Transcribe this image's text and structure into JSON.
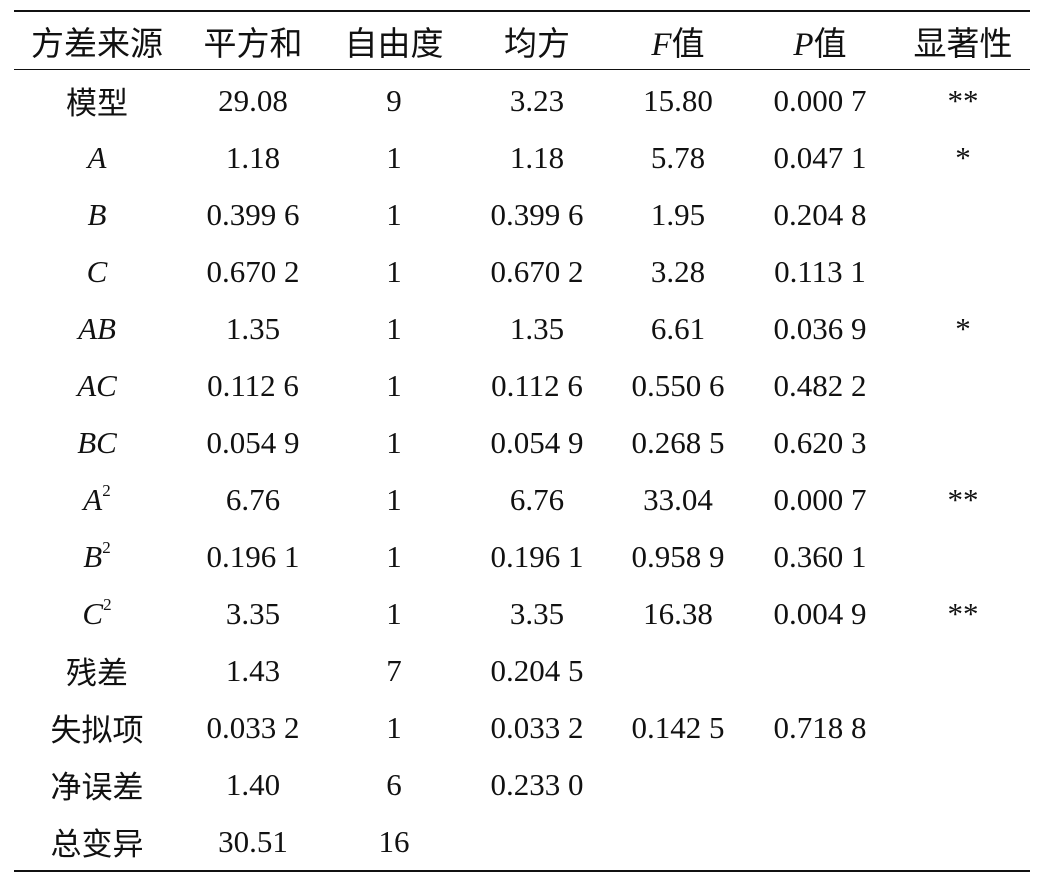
{
  "table": {
    "headers": [
      {
        "prefix": "",
        "text": "方差来源"
      },
      {
        "prefix": "",
        "text": "平方和"
      },
      {
        "prefix": "",
        "text": "自由度"
      },
      {
        "prefix": "",
        "text": "均方"
      },
      {
        "prefix": "F",
        "text": "值"
      },
      {
        "prefix": "P",
        "text": "值"
      },
      {
        "prefix": "",
        "text": "显著性"
      }
    ],
    "rows": [
      {
        "source": "模型",
        "source_italic": false,
        "source_sup": "",
        "ss": "29.08",
        "df": "9",
        "ms": "3.23",
        "f": "15.80",
        "p": "0.000 7",
        "sig": "**"
      },
      {
        "source": "A",
        "source_italic": true,
        "source_sup": "",
        "ss": "1.18",
        "df": "1",
        "ms": "1.18",
        "f": "5.78",
        "p": "0.047 1",
        "sig": "*"
      },
      {
        "source": "B",
        "source_italic": true,
        "source_sup": "",
        "ss": "0.399 6",
        "df": "1",
        "ms": "0.399 6",
        "f": "1.95",
        "p": "0.204 8",
        "sig": ""
      },
      {
        "source": "C",
        "source_italic": true,
        "source_sup": "",
        "ss": "0.670 2",
        "df": "1",
        "ms": "0.670 2",
        "f": "3.28",
        "p": "0.113 1",
        "sig": ""
      },
      {
        "source": "AB",
        "source_italic": true,
        "source_sup": "",
        "ss": "1.35",
        "df": "1",
        "ms": "1.35",
        "f": "6.61",
        "p": "0.036 9",
        "sig": "*"
      },
      {
        "source": "AC",
        "source_italic": true,
        "source_sup": "",
        "ss": "0.112 6",
        "df": "1",
        "ms": "0.112 6",
        "f": "0.550 6",
        "p": "0.482 2",
        "sig": ""
      },
      {
        "source": "BC",
        "source_italic": true,
        "source_sup": "",
        "ss": "0.054 9",
        "df": "1",
        "ms": "0.054 9",
        "f": "0.268 5",
        "p": "0.620 3",
        "sig": ""
      },
      {
        "source": "A",
        "source_italic": true,
        "source_sup": "2",
        "ss": "6.76",
        "df": "1",
        "ms": "6.76",
        "f": "33.04",
        "p": "0.000 7",
        "sig": "**"
      },
      {
        "source": "B",
        "source_italic": true,
        "source_sup": "2",
        "ss": "0.196 1",
        "df": "1",
        "ms": "0.196 1",
        "f": "0.958 9",
        "p": "0.360 1",
        "sig": ""
      },
      {
        "source": "C",
        "source_italic": true,
        "source_sup": "2",
        "ss": "3.35",
        "df": "1",
        "ms": "3.35",
        "f": "16.38",
        "p": "0.004 9",
        "sig": "**"
      },
      {
        "source": "残差",
        "source_italic": false,
        "source_sup": "",
        "ss": "1.43",
        "df": "7",
        "ms": "0.204 5",
        "f": "",
        "p": "",
        "sig": ""
      },
      {
        "source": "失拟项",
        "source_italic": false,
        "source_sup": "",
        "ss": "0.033 2",
        "df": "1",
        "ms": "0.033 2",
        "f": "0.142 5",
        "p": "0.718 8",
        "sig": ""
      },
      {
        "source": "净误差",
        "source_italic": false,
        "source_sup": "",
        "ss": "1.40",
        "df": "6",
        "ms": "0.233 0",
        "f": "",
        "p": "",
        "sig": ""
      },
      {
        "source": "总变异",
        "source_italic": false,
        "source_sup": "",
        "ss": "30.51",
        "df": "16",
        "ms": "",
        "f": "",
        "p": "",
        "sig": ""
      }
    ]
  }
}
